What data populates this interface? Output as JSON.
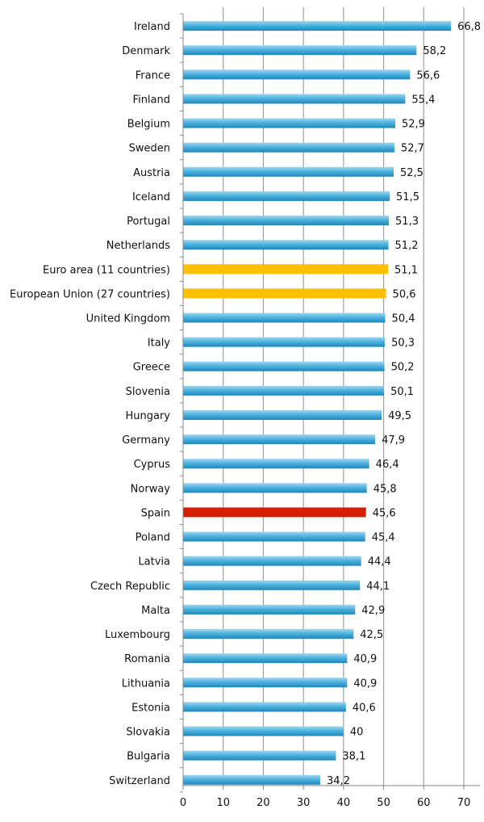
{
  "chart_data": {
    "type": "bar",
    "orientation": "horizontal",
    "title": "",
    "xlabel": "",
    "ylabel": "",
    "xlim": [
      0,
      70
    ],
    "xticks": [
      0,
      10,
      20,
      30,
      40,
      50,
      60,
      70
    ],
    "grid": "vertical",
    "legend": "none",
    "colors": {
      "default": "#3fa6d6",
      "euro": "#fcc000",
      "spain": "#d42000"
    },
    "categories": [
      "Ireland",
      "Denmark",
      "France",
      "Finland",
      "Belgium",
      "Sweden",
      "Austria",
      "Iceland",
      "Portugal",
      "Netherlands",
      "Euro area (11 countries)",
      "European Union (27 countries)",
      "United Kingdom",
      "Italy",
      "Greece",
      "Slovenia",
      "Hungary",
      "Germany",
      "Cyprus",
      "Norway",
      "Spain",
      "Poland",
      "Latvia",
      "Czech Republic",
      "Malta",
      "Luxembourg",
      "Romania",
      "Lithuania",
      "Estonia",
      "Slovakia",
      "Bulgaria",
      "Switzerland"
    ],
    "values": [
      66.8,
      58.2,
      56.6,
      55.4,
      52.9,
      52.7,
      52.5,
      51.5,
      51.3,
      51.2,
      51.1,
      50.6,
      50.4,
      50.3,
      50.2,
      50.1,
      49.5,
      47.9,
      46.4,
      45.8,
      45.6,
      45.4,
      44.4,
      44.1,
      42.9,
      42.5,
      40.9,
      40.9,
      40.6,
      40,
      38.1,
      34.2
    ],
    "value_labels": [
      "66,8",
      "58,2",
      "56,6",
      "55,4",
      "52,9",
      "52,7",
      "52,5",
      "51,5",
      "51,3",
      "51,2",
      "51,1",
      "50,6",
      "50,4",
      "50,3",
      "50,2",
      "50,1",
      "49,5",
      "47,9",
      "46,4",
      "45,8",
      "45,6",
      "45,4",
      "44,4",
      "44,1",
      "42,9",
      "42,5",
      "40,9",
      "40,9",
      "40,6",
      "40",
      "38,1",
      "34,2"
    ],
    "highlight": {
      "Euro area (11 countries)": "euro",
      "European Union (27 countries)": "euro",
      "Spain": "spain"
    }
  }
}
